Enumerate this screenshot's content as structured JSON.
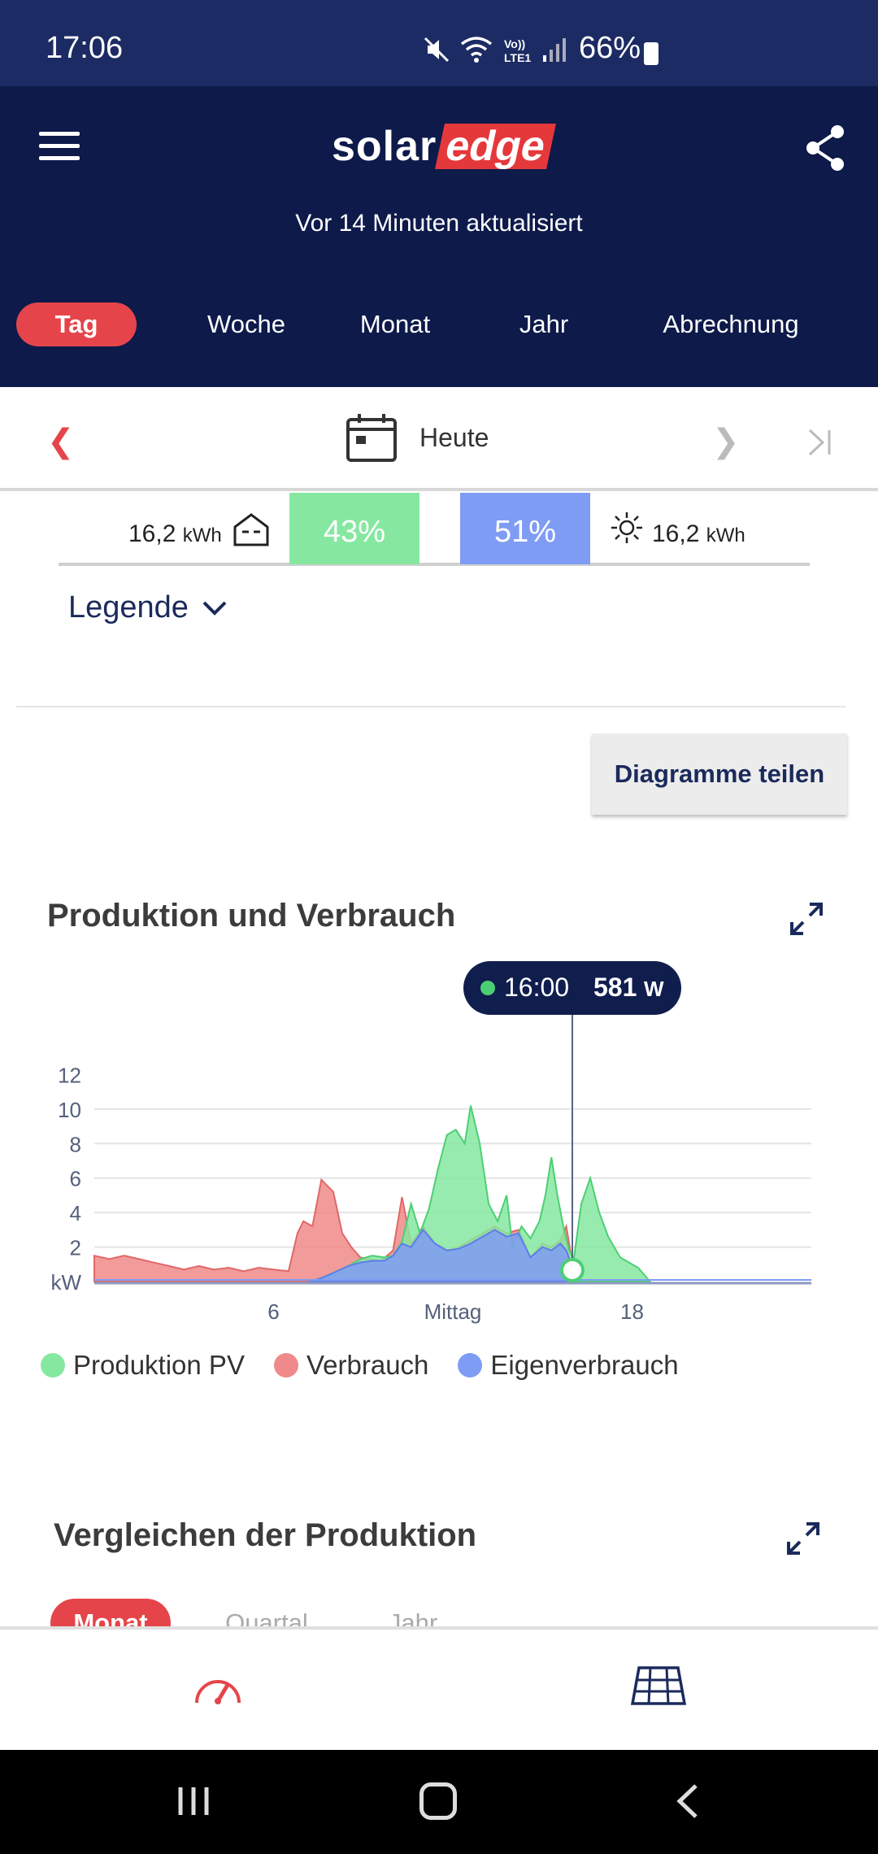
{
  "status_bar": {
    "time": "17:06",
    "battery": "66%",
    "icons": [
      "mute-icon",
      "wifi-icon",
      "volte-icon",
      "signal-icon",
      "battery-icon"
    ]
  },
  "header": {
    "logo_left": "solar",
    "logo_right": "edge",
    "updated": "Vor 14 Minuten aktualisiert",
    "tabs": [
      {
        "label": "Tag",
        "active": true
      },
      {
        "label": "Woche",
        "active": false
      },
      {
        "label": "Monat",
        "active": false
      },
      {
        "label": "Jahr",
        "active": false
      },
      {
        "label": "Abrechnung",
        "active": false
      }
    ]
  },
  "date_nav": {
    "label": "Heute"
  },
  "summary": {
    "consumption_value": "16,2",
    "consumption_unit": "kWh",
    "self_consumption_pct": "43%",
    "self_sufficiency_pct": "51%",
    "production_value": "16,2",
    "production_unit": "kWh"
  },
  "legend_toggle": "Legende",
  "share_button": "Diagramme teilen",
  "chart": {
    "title": "Produktion und Verbrauch",
    "tooltip_time": "16:00",
    "tooltip_value": "581",
    "tooltip_unit": "W"
  },
  "chart_data": {
    "type": "area",
    "ylabel": "kW",
    "ylim": [
      0,
      12
    ],
    "yticks": [
      "12",
      "10",
      "8",
      "6",
      "4",
      "2"
    ],
    "xlim": [
      0,
      24
    ],
    "xticks": [
      {
        "x": 6,
        "label": "6"
      },
      {
        "x": 12,
        "label": "Mittag"
      },
      {
        "x": 18,
        "label": "18"
      }
    ],
    "series": [
      {
        "name": "Verbrauch",
        "color": "#f08a8a",
        "points": [
          [
            0,
            1.5
          ],
          [
            0.5,
            1.3
          ],
          [
            1,
            1.5
          ],
          [
            1.5,
            1.3
          ],
          [
            2,
            1.1
          ],
          [
            2.5,
            0.9
          ],
          [
            3,
            0.7
          ],
          [
            3.5,
            0.9
          ],
          [
            4,
            0.7
          ],
          [
            4.5,
            0.8
          ],
          [
            5,
            0.6
          ],
          [
            5.5,
            0.8
          ],
          [
            6,
            0.7
          ],
          [
            6.5,
            0.6
          ],
          [
            6.8,
            2.8
          ],
          [
            7,
            3.5
          ],
          [
            7.3,
            3.2
          ],
          [
            7.6,
            5.9
          ],
          [
            8,
            5.2
          ],
          [
            8.3,
            2.8
          ],
          [
            8.6,
            2.0
          ],
          [
            8.9,
            1.4
          ],
          [
            9.2,
            1.3
          ],
          [
            9.6,
            1.2
          ],
          [
            10,
            1.8
          ],
          [
            10.3,
            4.9
          ],
          [
            10.6,
            2.2
          ],
          [
            11,
            3.2
          ],
          [
            11.4,
            2.2
          ],
          [
            11.8,
            1.8
          ],
          [
            12.2,
            2.0
          ],
          [
            12.6,
            2.4
          ],
          [
            13,
            2.8
          ],
          [
            13.4,
            3.2
          ],
          [
            13.8,
            2.8
          ],
          [
            14.2,
            3.0
          ],
          [
            14.6,
            1.4
          ],
          [
            15,
            2.2
          ],
          [
            15.3,
            2.0
          ],
          [
            15.6,
            2.4
          ],
          [
            15.8,
            3.2
          ],
          [
            16.05,
            0.58
          ]
        ]
      },
      {
        "name": "Produktion PV",
        "color": "#86e8a0",
        "points": [
          [
            7.2,
            0.0
          ],
          [
            7.6,
            0.2
          ],
          [
            8,
            0.5
          ],
          [
            8.5,
            0.9
          ],
          [
            8.9,
            1.3
          ],
          [
            9.3,
            1.5
          ],
          [
            9.7,
            1.4
          ],
          [
            10,
            1.5
          ],
          [
            10.3,
            2.3
          ],
          [
            10.6,
            4.5
          ],
          [
            10.9,
            2.8
          ],
          [
            11.2,
            4.2
          ],
          [
            11.5,
            6.5
          ],
          [
            11.8,
            8.5
          ],
          [
            12.1,
            8.8
          ],
          [
            12.4,
            8.0
          ],
          [
            12.6,
            10.2
          ],
          [
            12.9,
            8.0
          ],
          [
            13.2,
            4.5
          ],
          [
            13.5,
            3.5
          ],
          [
            13.8,
            5.0
          ],
          [
            14.0,
            2.0
          ],
          [
            14.3,
            3.2
          ],
          [
            14.6,
            2.5
          ],
          [
            14.9,
            3.5
          ],
          [
            15.1,
            5.0
          ],
          [
            15.3,
            7.2
          ],
          [
            15.5,
            5.0
          ],
          [
            15.7,
            3.2
          ],
          [
            15.9,
            1.8
          ],
          [
            16.05,
            1.3
          ],
          [
            16.3,
            4.5
          ],
          [
            16.6,
            6.0
          ],
          [
            16.9,
            4.0
          ],
          [
            17.2,
            2.6
          ],
          [
            17.6,
            1.4
          ],
          [
            18.2,
            0.8
          ],
          [
            18.6,
            0.0
          ]
        ]
      },
      {
        "name": "Eigenverbrauch",
        "color": "#7f9cf5",
        "points": [
          [
            7.2,
            0.0
          ],
          [
            7.6,
            0.2
          ],
          [
            8,
            0.5
          ],
          [
            8.5,
            0.9
          ],
          [
            8.9,
            1.1
          ],
          [
            9.3,
            1.2
          ],
          [
            9.7,
            1.2
          ],
          [
            10,
            1.5
          ],
          [
            10.3,
            2.2
          ],
          [
            10.6,
            2.0
          ],
          [
            11,
            3.0
          ],
          [
            11.4,
            2.2
          ],
          [
            11.8,
            1.8
          ],
          [
            12.2,
            1.9
          ],
          [
            12.6,
            2.2
          ],
          [
            13,
            2.6
          ],
          [
            13.4,
            3.0
          ],
          [
            13.8,
            2.6
          ],
          [
            14.2,
            2.8
          ],
          [
            14.6,
            1.4
          ],
          [
            15,
            2.0
          ],
          [
            15.3,
            1.8
          ],
          [
            15.6,
            2.2
          ],
          [
            15.8,
            1.8
          ],
          [
            16.05,
            0.58
          ]
        ]
      }
    ],
    "marker": {
      "x": 16.0,
      "y": 0.581
    }
  },
  "legend": [
    {
      "label": "Produktion PV",
      "color": "#86e8a0"
    },
    {
      "label": "Verbrauch",
      "color": "#f08a8a"
    },
    {
      "label": "Eigenverbrauch",
      "color": "#7f9cf5"
    }
  ],
  "compare": {
    "title": "Vergleichen der Produktion",
    "tabs": [
      {
        "label": "Monat",
        "active": true
      },
      {
        "label": "Quartal",
        "active": false
      },
      {
        "label": "Jahr",
        "active": false
      }
    ]
  },
  "bottom_nav": [
    "dashboard-gauge-icon",
    "solar-panel-icon"
  ]
}
